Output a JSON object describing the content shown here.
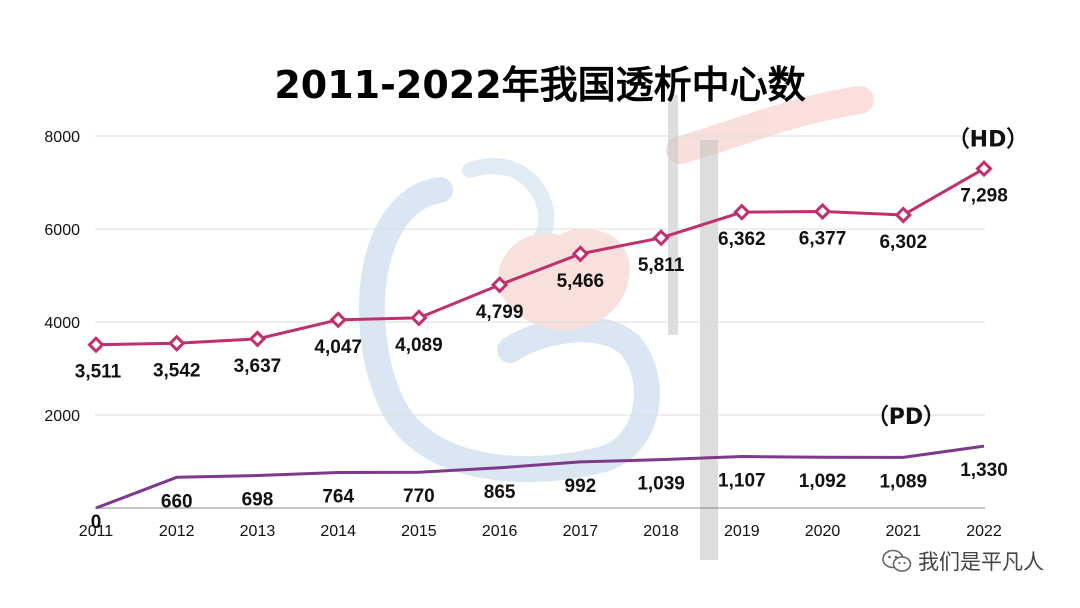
{
  "chart_data": {
    "type": "line",
    "title": "2011-2022年我国透析中心数",
    "categories": [
      "2011",
      "2012",
      "2013",
      "2014",
      "2015",
      "2016",
      "2017",
      "2018",
      "2019",
      "2020",
      "2021",
      "2022"
    ],
    "yticks": [
      "0",
      "2000",
      "4000",
      "6000",
      "8000"
    ],
    "ylim": [
      0,
      8000
    ],
    "grid": true,
    "series": [
      {
        "name": "（HD）",
        "color": "#c0306e",
        "values": [
          3511,
          3542,
          3637,
          4047,
          4089,
          4799,
          5466,
          5811,
          6362,
          6377,
          6302,
          7298
        ],
        "labels": [
          "3,511",
          "3,542",
          "3,637",
          "4,047",
          "4,089",
          "4,799",
          "5,466",
          "5,811",
          "6,362",
          "6,377",
          "6,302",
          "7,298"
        ],
        "markers": true
      },
      {
        "name": "（PD）",
        "color": "#7b3a8c",
        "values": [
          0,
          660,
          698,
          764,
          770,
          865,
          992,
          1039,
          1107,
          1092,
          1089,
          1330
        ],
        "labels": [
          "0",
          "660",
          "698",
          "764",
          "770",
          "865",
          "992",
          "1,039",
          "1,107",
          "1,092",
          "1,089",
          "1,330"
        ],
        "markers": false
      }
    ]
  },
  "watermark": {
    "text": "我们是平凡人",
    "icon": "wechat-icon"
  }
}
